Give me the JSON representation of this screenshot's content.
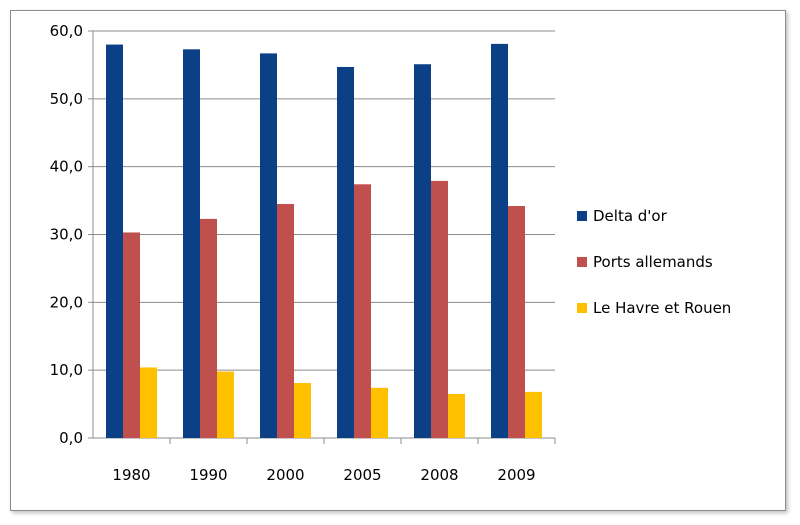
{
  "chart_data": {
    "type": "bar",
    "title": "",
    "xlabel": "",
    "ylabel": "",
    "categories": [
      "1980",
      "1990",
      "2000",
      "2005",
      "2008",
      "2009"
    ],
    "ylim": [
      0,
      60
    ],
    "yticks": [
      "0,0",
      "10,0",
      "20,0",
      "30,0",
      "40,0",
      "50,0",
      "60,0"
    ],
    "grid": true,
    "legend_position": "right",
    "series": [
      {
        "name": "Delta d'or",
        "color": "#0b4086",
        "values": [
          58.0,
          57.3,
          56.7,
          54.7,
          55.1,
          58.1
        ]
      },
      {
        "name": "Ports allemands",
        "color": "#c0504d",
        "values": [
          30.3,
          32.3,
          34.5,
          37.4,
          37.9,
          34.2
        ]
      },
      {
        "name": "Le Havre et Rouen",
        "color": "#ffc000",
        "values": [
          10.4,
          9.8,
          8.1,
          7.4,
          6.5,
          6.8
        ]
      }
    ]
  }
}
